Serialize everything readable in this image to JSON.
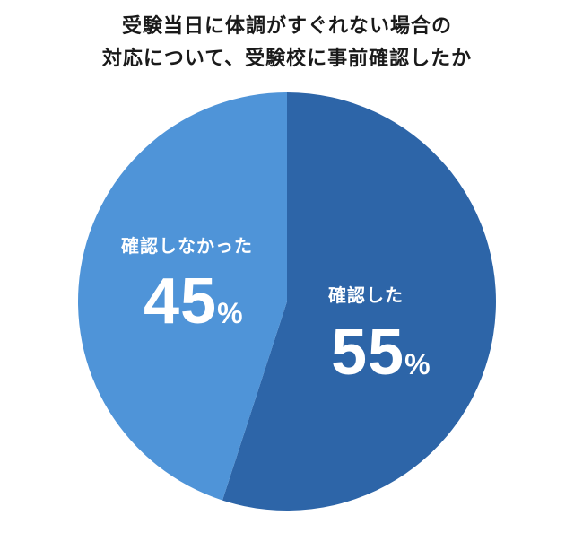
{
  "title": {
    "line1": "受験当日に体調がすぐれない場合の",
    "line2": "対応について、受験校に事前確認したか"
  },
  "chart_data": {
    "type": "pie",
    "title": "受験当日に体調がすぐれない場合の対応について、受験校に事前確認したか",
    "categories": [
      "確認した",
      "確認しなかった"
    ],
    "values": [
      55,
      45
    ],
    "unit": "%",
    "colors": [
      "#2d65a8",
      "#4f94d8"
    ],
    "start_angle": "12 o'clock, clockwise",
    "legend": "none (labels inside slices)"
  },
  "slices": [
    {
      "label": "確認した",
      "value": "55",
      "unit": "%",
      "color": "#2d65a8"
    },
    {
      "label": "確認しなかった",
      "value": "45",
      "unit": "%",
      "color": "#4f94d8"
    }
  ]
}
